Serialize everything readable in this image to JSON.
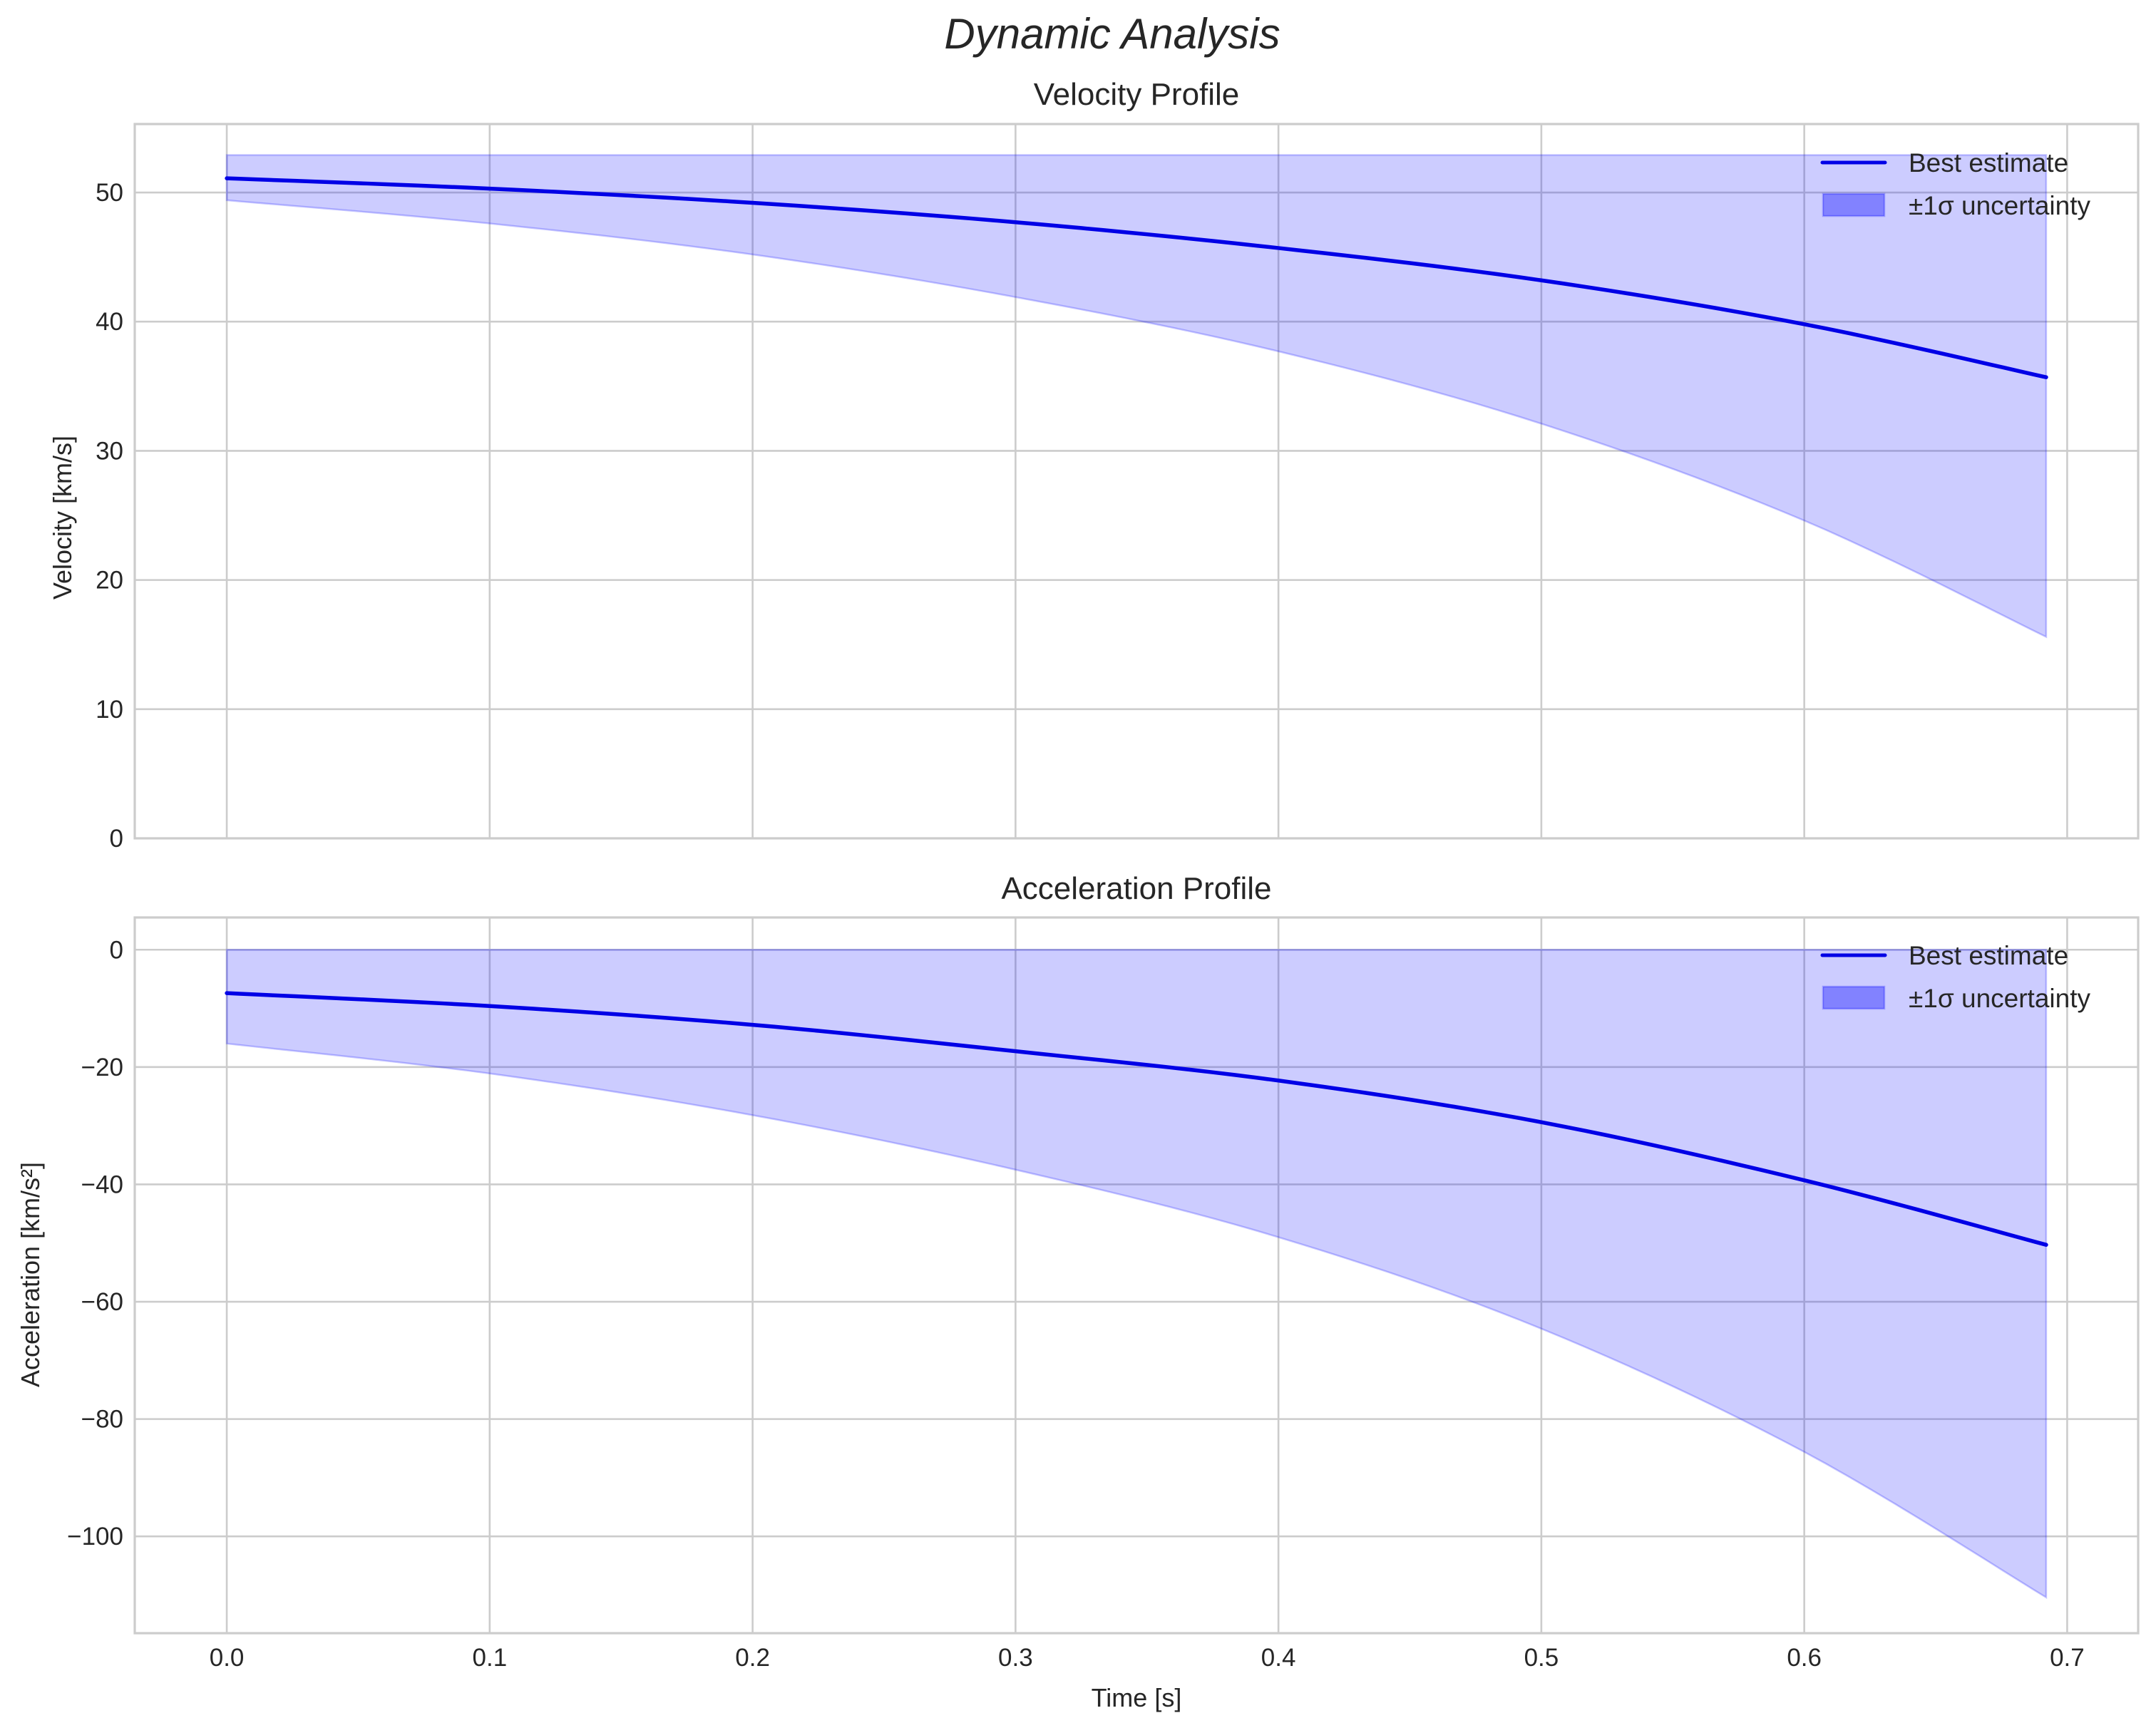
{
  "figure": {
    "suptitle": "Dynamic Analysis",
    "colors": {
      "line": "#0000e6",
      "band_fill": "#0000ff",
      "band_fill_opacity": 0.2,
      "grid": "#cccccc",
      "text": "#262626"
    }
  },
  "chart_data": [
    {
      "type": "area",
      "title": "Velocity Profile",
      "xlabel": "",
      "ylabel": "Velocity [km/s]",
      "xlim": [
        -0.035,
        0.727
      ],
      "ylim": [
        0,
        55.3
      ],
      "xticks": [
        0.0,
        0.1,
        0.2,
        0.3,
        0.4,
        0.5,
        0.6,
        0.7
      ],
      "xtick_labels": [
        "0.0",
        "0.1",
        "0.2",
        "0.3",
        "0.4",
        "0.5",
        "0.6",
        "0.7"
      ],
      "xtick_labels_visible": false,
      "yticks": [
        0,
        10,
        20,
        30,
        40,
        50
      ],
      "ytick_labels": [
        "0",
        "10",
        "20",
        "30",
        "40",
        "50"
      ],
      "grid": true,
      "legend_position": "upper right",
      "x": [
        0.0,
        0.1,
        0.2,
        0.3,
        0.4,
        0.5,
        0.6,
        0.692
      ],
      "series": [
        {
          "name": "Best estimate",
          "kind": "line",
          "values": [
            51.1,
            50.3,
            49.2,
            47.7,
            45.7,
            43.2,
            39.8,
            35.7
          ]
        },
        {
          "name": "±1σ uncertainty",
          "kind": "band",
          "upper": [
            52.9,
            52.9,
            52.9,
            52.9,
            52.9,
            52.9,
            52.9,
            52.9
          ],
          "lower": [
            49.4,
            47.6,
            45.2,
            41.9,
            37.7,
            32.1,
            24.6,
            15.6
          ]
        }
      ]
    },
    {
      "type": "area",
      "title": "Acceleration Profile",
      "xlabel": "Time [s]",
      "ylabel": "Acceleration [km/s²]",
      "xlim": [
        -0.035,
        0.727
      ],
      "ylim": [
        -116.5,
        5.5
      ],
      "xticks": [
        0.0,
        0.1,
        0.2,
        0.3,
        0.4,
        0.5,
        0.6,
        0.7
      ],
      "xtick_labels": [
        "0.0",
        "0.1",
        "0.2",
        "0.3",
        "0.4",
        "0.5",
        "0.6",
        "0.7"
      ],
      "xtick_labels_visible": true,
      "yticks": [
        0,
        -20,
        -40,
        -60,
        -80,
        -100
      ],
      "ytick_labels": [
        "0",
        "−20",
        "−40",
        "−60",
        "−80",
        "−100"
      ],
      "grid": true,
      "legend_position": "upper right",
      "x": [
        0.0,
        0.1,
        0.2,
        0.3,
        0.4,
        0.5,
        0.6,
        0.692
      ],
      "series": [
        {
          "name": "Best estimate",
          "kind": "line",
          "values": [
            -7.4,
            -9.6,
            -12.8,
            -17.3,
            -22.3,
            -29.4,
            -39.3,
            -50.3
          ]
        },
        {
          "name": "±1σ uncertainty",
          "kind": "band",
          "upper": [
            0,
            0,
            0,
            0,
            0,
            0,
            0,
            0
          ],
          "lower": [
            -16.0,
            -21.1,
            -28.2,
            -37.5,
            -49.0,
            -64.6,
            -85.6,
            -110.4
          ]
        }
      ]
    }
  ]
}
